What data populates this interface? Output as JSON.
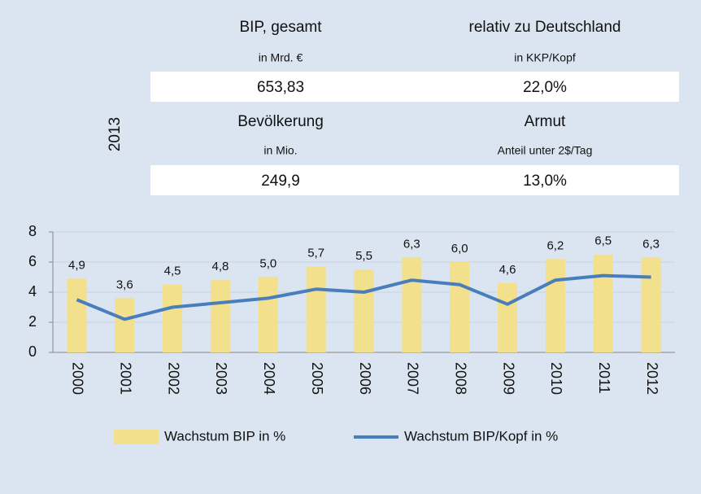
{
  "panel": {
    "year": "2013",
    "items": [
      {
        "title": "BIP, gesamt",
        "unit": "in Mrd. €",
        "value": "653,83"
      },
      {
        "title": "relativ zu Deutschland",
        "unit": "in KKP/Kopf",
        "value": "22,0%"
      },
      {
        "title": "Bevölkerung",
        "unit": "in Mio.",
        "value": "249,9"
      },
      {
        "title": "Armut",
        "unit": "Anteil unter 2$/Tag",
        "value": "13,0%"
      }
    ]
  },
  "chart_data": {
    "type": "combo",
    "categories": [
      "2000",
      "2001",
      "2002",
      "2003",
      "2004",
      "2005",
      "2006",
      "2007",
      "2008",
      "2009",
      "2010",
      "2011",
      "2012"
    ],
    "series": [
      {
        "name": "Wachstum BIP in %",
        "type": "bar",
        "color": "#f3e08c",
        "values": [
          4.9,
          3.6,
          4.5,
          4.8,
          5.0,
          5.7,
          5.5,
          6.3,
          6.0,
          4.6,
          6.2,
          6.5,
          6.3
        ],
        "value_labels": [
          "4,9",
          "3,6",
          "4,5",
          "4,8",
          "5,0",
          "5,7",
          "5,5",
          "6,3",
          "6,0",
          "4,6",
          "6,2",
          "6,5",
          "6,3"
        ]
      },
      {
        "name": "Wachstum BIP/Kopf in %",
        "type": "line",
        "color": "#4a7ebb",
        "values": [
          3.5,
          2.2,
          3.0,
          3.3,
          3.6,
          4.2,
          4.0,
          4.8,
          4.5,
          3.2,
          4.8,
          5.1,
          5.0
        ]
      }
    ],
    "ylim": [
      0,
      8
    ],
    "yticks": [
      0,
      2,
      4,
      6,
      8
    ],
    "grid": true
  }
}
